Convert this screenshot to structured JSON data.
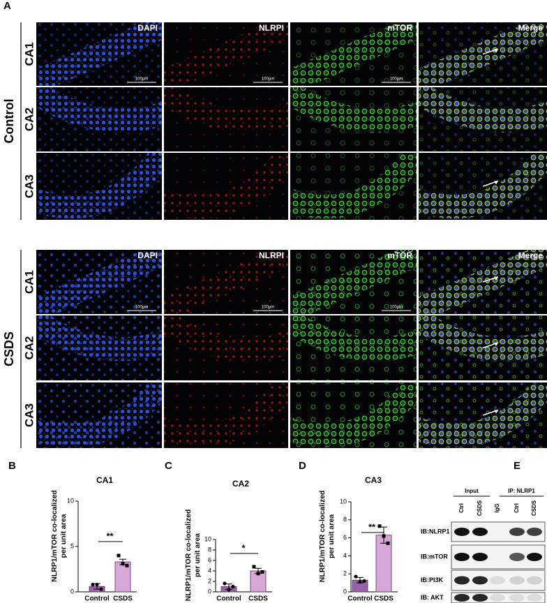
{
  "panel_labels": [
    "A",
    "B",
    "C",
    "D",
    "E"
  ],
  "panel_a": {
    "groups": [
      {
        "name": "Control",
        "rows": [
          "CA1",
          "CA2",
          "CA3"
        ]
      },
      {
        "name": "CSDS",
        "rows": [
          "CA1",
          "CA2",
          "CA3"
        ]
      }
    ],
    "channels": [
      "DAPI",
      "NLRPI",
      "mTOR",
      "Merge"
    ],
    "scale_bar": "100μm"
  },
  "chart_data": [
    {
      "type": "bar",
      "title": "CA1",
      "y_label": [
        "NLRP1/mTOR co-localized",
        "per unit area"
      ],
      "categories": [
        "Control",
        "CSDS"
      ],
      "values": [
        0.6,
        3.3
      ],
      "errors": [
        0.3,
        0.3
      ],
      "points": [
        [
          0.8,
          0.8,
          0.3
        ],
        [
          4.0,
          3.1,
          2.9
        ]
      ],
      "colors": [
        "#9a62a6",
        "#d7a7d8"
      ],
      "ylim": [
        0,
        10
      ],
      "yticks": [
        0,
        5,
        10
      ],
      "significance": "**"
    },
    {
      "type": "bar",
      "title": "CA2",
      "y_label": [
        "NLRP1/mTOR co-localized",
        "per unit area"
      ],
      "categories": [
        "Control",
        "CSDS"
      ],
      "values": [
        1.0,
        4.0
      ],
      "errors": [
        0.5,
        0.5
      ],
      "points": [
        [
          1.6,
          0.4,
          1.0
        ],
        [
          4.8,
          3.5,
          3.8
        ]
      ],
      "colors": [
        "#9a62a6",
        "#d7a7d8"
      ],
      "ylim": [
        0,
        10
      ],
      "yticks": [
        0,
        2,
        4,
        6,
        8,
        10
      ],
      "significance": "*"
    },
    {
      "type": "bar",
      "title": "CA3",
      "y_label": [
        "NLRP1/mTOR co-localized",
        "per unit area"
      ],
      "categories": [
        "Control",
        "CSDS"
      ],
      "values": [
        1.3,
        6.3
      ],
      "errors": [
        0.3,
        0.9
      ],
      "points": [
        [
          1.7,
          1.1,
          1.2
        ],
        [
          7.3,
          6.2,
          5.4
        ]
      ],
      "colors": [
        "#9a62a6",
        "#d7a7d8"
      ],
      "ylim": [
        0,
        10
      ],
      "yticks": [
        0,
        2,
        4,
        6,
        8,
        10
      ],
      "significance": "**"
    }
  ],
  "panel_e": {
    "groups": [
      "Input",
      "IP: NLRP1"
    ],
    "lanes": [
      "Ctrl",
      "CSDS",
      "IgG",
      "Ctrl",
      "CSDS"
    ],
    "rows": [
      "IB:NLRP1",
      "IB:mTOR",
      "IB:PI3K",
      "IB: AKT"
    ]
  }
}
